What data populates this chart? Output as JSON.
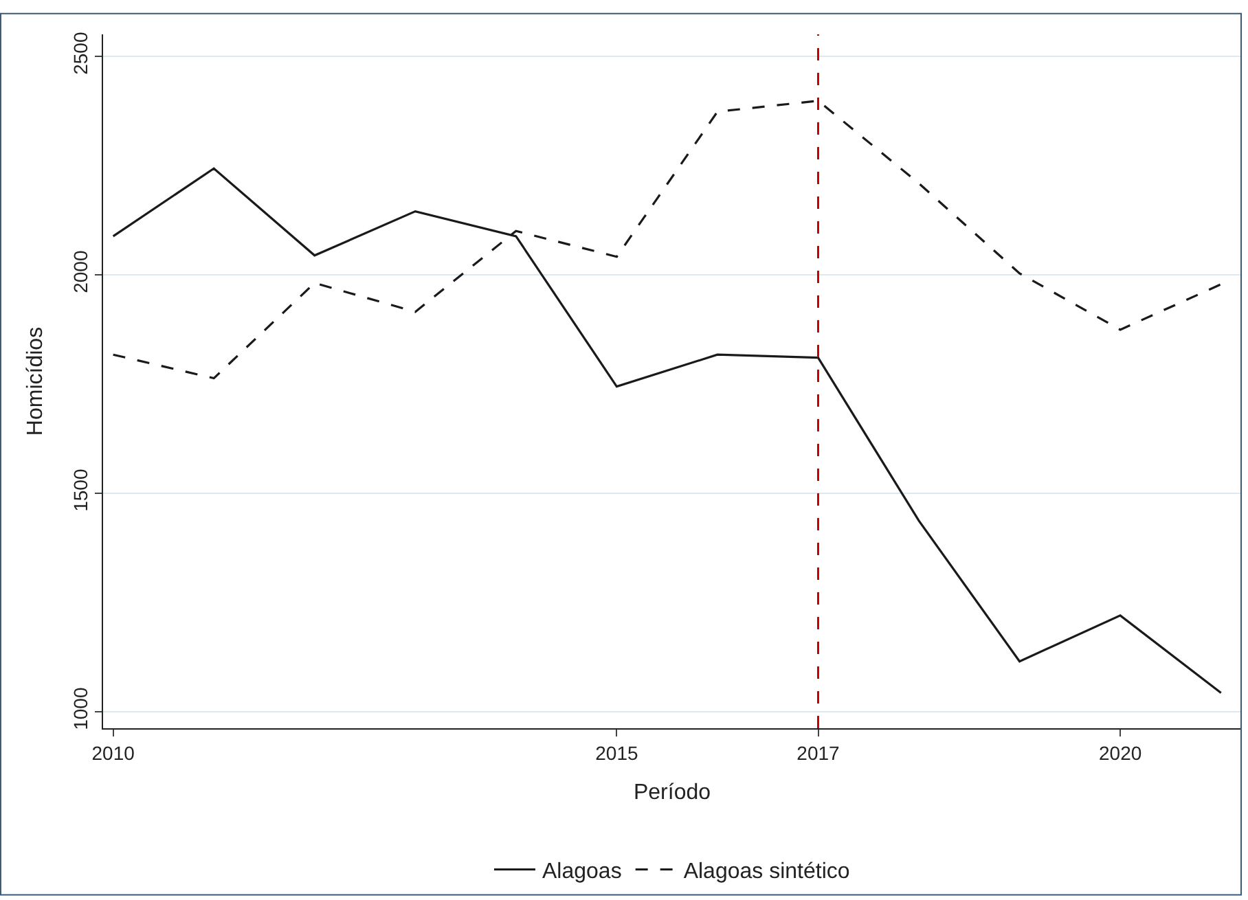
{
  "chart_data": {
    "type": "line",
    "xlabel": "Período",
    "ylabel": "Homicídios",
    "x": [
      2010,
      2011,
      2012,
      2013,
      2014,
      2015,
      2016,
      2017,
      2018,
      2019,
      2020,
      2021
    ],
    "series": [
      {
        "name": "Alagoas",
        "color": "#1a1a1a",
        "line_style": "solid",
        "values": [
          2088,
          2243,
          2044,
          2145,
          2088,
          1744,
          1817,
          1810,
          1437,
          1115,
          1220,
          1043
        ]
      },
      {
        "name": "Alagoas sintético",
        "color": "#1a1a1a",
        "line_style": "dashed",
        "values": [
          1817,
          1763,
          1981,
          1915,
          2100,
          2041,
          2373,
          2398,
          2209,
          2003,
          1874,
          1978
        ]
      }
    ],
    "xlim": [
      2009.9,
      2021.2
    ],
    "ylim": [
      962,
      2550
    ],
    "xticks": [
      2010,
      2015,
      2017,
      2020
    ],
    "yticks": [
      1000,
      1500,
      2000,
      2500
    ],
    "ref_lines": [
      {
        "axis": "x",
        "value": 2017,
        "color": "#cc0000",
        "line_style": "dashed"
      }
    ],
    "grid": "y",
    "legend": "bottom",
    "marker": "none"
  }
}
